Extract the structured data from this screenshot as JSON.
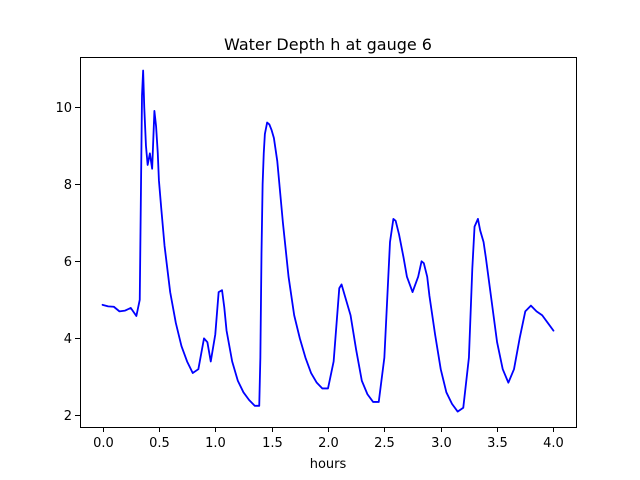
{
  "chart_data": {
    "type": "line",
    "title": "Water Depth h at gauge 6",
    "xlabel": "hours",
    "ylabel": "",
    "xlim": [
      -0.2,
      4.2
    ],
    "ylim": [
      1.7,
      11.3
    ],
    "xticks": [
      0.0,
      0.5,
      1.0,
      1.5,
      2.0,
      2.5,
      3.0,
      3.5,
      4.0
    ],
    "xtick_labels": [
      "0.0",
      "0.5",
      "1.0",
      "1.5",
      "2.0",
      "2.5",
      "3.0",
      "3.5",
      "4.0"
    ],
    "yticks": [
      2,
      4,
      6,
      8,
      10
    ],
    "ytick_labels": [
      "2",
      "4",
      "6",
      "8",
      "10"
    ],
    "grid": false,
    "legend": "none",
    "series": [
      {
        "color": "#0000ff",
        "x": [
          0.0,
          0.05,
          0.1,
          0.15,
          0.2,
          0.25,
          0.3,
          0.33,
          0.345,
          0.35,
          0.36,
          0.37,
          0.385,
          0.4,
          0.42,
          0.44,
          0.46,
          0.475,
          0.49,
          0.5,
          0.52,
          0.55,
          0.6,
          0.65,
          0.7,
          0.75,
          0.8,
          0.85,
          0.9,
          0.93,
          0.96,
          1.0,
          1.03,
          1.06,
          1.08,
          1.1,
          1.15,
          1.2,
          1.25,
          1.3,
          1.35,
          1.39,
          1.4,
          1.41,
          1.42,
          1.43,
          1.44,
          1.46,
          1.48,
          1.5,
          1.52,
          1.55,
          1.6,
          1.65,
          1.7,
          1.75,
          1.8,
          1.85,
          1.9,
          1.95,
          2.0,
          2.05,
          2.1,
          2.12,
          2.15,
          2.2,
          2.25,
          2.3,
          2.35,
          2.4,
          2.45,
          2.5,
          2.55,
          2.58,
          2.6,
          2.63,
          2.67,
          2.7,
          2.75,
          2.8,
          2.83,
          2.85,
          2.88,
          2.9,
          2.95,
          3.0,
          3.05,
          3.1,
          3.15,
          3.2,
          3.25,
          3.28,
          3.3,
          3.33,
          3.35,
          3.38,
          3.4,
          3.45,
          3.5,
          3.55,
          3.6,
          3.65,
          3.7,
          3.75,
          3.8,
          3.85,
          3.9,
          3.95,
          4.0
        ],
        "y": [
          4.87,
          4.83,
          4.82,
          4.7,
          4.72,
          4.79,
          4.58,
          5.0,
          9.0,
          10.3,
          10.95,
          10.0,
          9.0,
          8.5,
          8.8,
          8.4,
          9.9,
          9.5,
          8.8,
          8.1,
          7.4,
          6.4,
          5.2,
          4.4,
          3.8,
          3.4,
          3.1,
          3.2,
          4.0,
          3.9,
          3.4,
          4.1,
          5.2,
          5.25,
          4.8,
          4.2,
          3.4,
          2.9,
          2.6,
          2.4,
          2.25,
          2.25,
          3.5,
          6.2,
          8.0,
          8.8,
          9.3,
          9.6,
          9.55,
          9.4,
          9.2,
          8.6,
          7.0,
          5.6,
          4.6,
          4.0,
          3.5,
          3.1,
          2.85,
          2.7,
          2.7,
          3.4,
          5.3,
          5.4,
          5.1,
          4.6,
          3.7,
          2.9,
          2.55,
          2.35,
          2.35,
          3.5,
          6.5,
          7.1,
          7.05,
          6.7,
          6.1,
          5.6,
          5.2,
          5.6,
          6.0,
          5.95,
          5.6,
          5.1,
          4.1,
          3.2,
          2.6,
          2.3,
          2.1,
          2.2,
          3.5,
          5.8,
          6.9,
          7.1,
          6.8,
          6.5,
          6.1,
          5.0,
          3.9,
          3.2,
          2.85,
          3.2,
          4.0,
          4.7,
          4.85,
          4.7,
          4.6,
          4.4,
          4.2
        ]
      }
    ]
  }
}
